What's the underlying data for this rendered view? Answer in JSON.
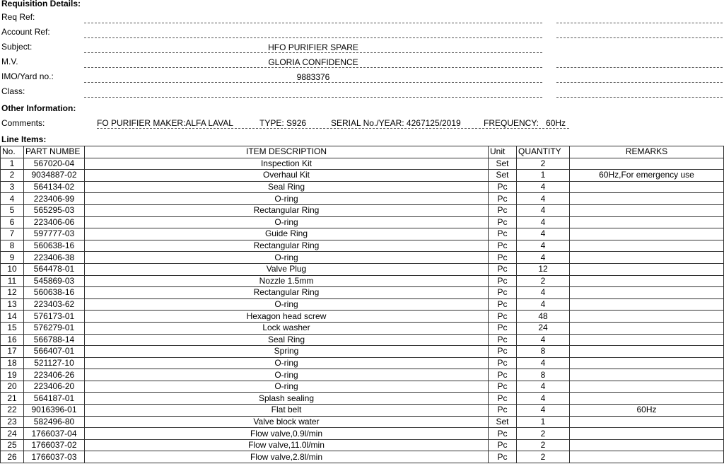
{
  "title": "Requisition Details:",
  "fields": [
    {
      "label": "Req Ref:",
      "value": ""
    },
    {
      "label": "Account Ref:",
      "value": ""
    },
    {
      "label": "Subject:",
      "value": "HFO PURIFIER SPARE"
    },
    {
      "label": "M.V.",
      "value": "GLORIA CONFIDENCE"
    },
    {
      "label": "IMO/Yard no.:",
      "value": "9883376"
    },
    {
      "label": "Class:",
      "value": ""
    }
  ],
  "other_title": "Other Information:",
  "comments_label": "Comments:",
  "comments": [
    "FO PURIFIER MAKER:ALFA LAVAL",
    "TYPE: S926",
    "SERIAL No./YEAR: 4267125/2019",
    "FREQUENCY:   60Hz"
  ],
  "line_items_title": "Line Items:",
  "columns": [
    "No.",
    "PART NUMBE",
    "ITEM DESCRIPTION",
    "Unit",
    "QUANTITY",
    "REMARKS"
  ],
  "rows": [
    [
      "1",
      "567020-04",
      "Inspection Kit",
      "Set",
      "2",
      ""
    ],
    [
      "2",
      "9034887-02",
      "Overhaul Kit",
      "Set",
      "1",
      "60Hz,For emergency use"
    ],
    [
      "3",
      "564134-02",
      "Seal Ring",
      "Pc",
      "4",
      ""
    ],
    [
      "4",
      "223406-99",
      "O-ring",
      "Pc",
      "4",
      ""
    ],
    [
      "5",
      "565295-03",
      "Rectangular Ring",
      "Pc",
      "4",
      ""
    ],
    [
      "6",
      "223406-06",
      "O-ring",
      "Pc",
      "4",
      ""
    ],
    [
      "7",
      "597777-03",
      "Guide Ring",
      "Pc",
      "4",
      ""
    ],
    [
      "8",
      "560638-16",
      "Rectangular Ring",
      "Pc",
      "4",
      ""
    ],
    [
      "9",
      "223406-38",
      "O-ring",
      "Pc",
      "4",
      ""
    ],
    [
      "10",
      "564478-01",
      "Valve Plug",
      "Pc",
      "12",
      ""
    ],
    [
      "11",
      "545869-03",
      "Nozzle 1.5mm",
      "Pc",
      "2",
      ""
    ],
    [
      "12",
      "560638-16",
      "Rectangular Ring",
      "Pc",
      "4",
      ""
    ],
    [
      "13",
      "223403-62",
      "O-ring",
      "Pc",
      "4",
      ""
    ],
    [
      "14",
      "576173-01",
      "Hexagon head screw",
      "Pc",
      "48",
      ""
    ],
    [
      "15",
      "576279-01",
      "Lock washer",
      "Pc",
      "24",
      ""
    ],
    [
      "16",
      "566788-14",
      "Seal Ring",
      "Pc",
      "4",
      ""
    ],
    [
      "17",
      "566407-01",
      "Spring",
      "Pc",
      "8",
      ""
    ],
    [
      "18",
      "521127-10",
      "O-ring",
      "Pc",
      "4",
      ""
    ],
    [
      "19",
      "223406-26",
      "O-ring",
      "Pc",
      "8",
      ""
    ],
    [
      "20",
      "223406-20",
      "O-ring",
      "Pc",
      "4",
      ""
    ],
    [
      "21",
      "564187-01",
      "Splash sealing",
      "Pc",
      "4",
      ""
    ],
    [
      "22",
      "9016396-01",
      "Flat belt",
      "Pc",
      "4",
      "60Hz"
    ],
    [
      "23",
      "582496-80",
      "Valve block water",
      "Set",
      "1",
      ""
    ],
    [
      "24",
      "1766037-04",
      "Flow valve,0.9l/min",
      "Pc",
      "2",
      ""
    ],
    [
      "25",
      "1766037-02",
      "Flow valve,11.0l/min",
      "Pc",
      "2",
      ""
    ],
    [
      "26",
      "1766037-03",
      "Flow valve,2.8l/min",
      "Pc",
      "2",
      ""
    ]
  ]
}
